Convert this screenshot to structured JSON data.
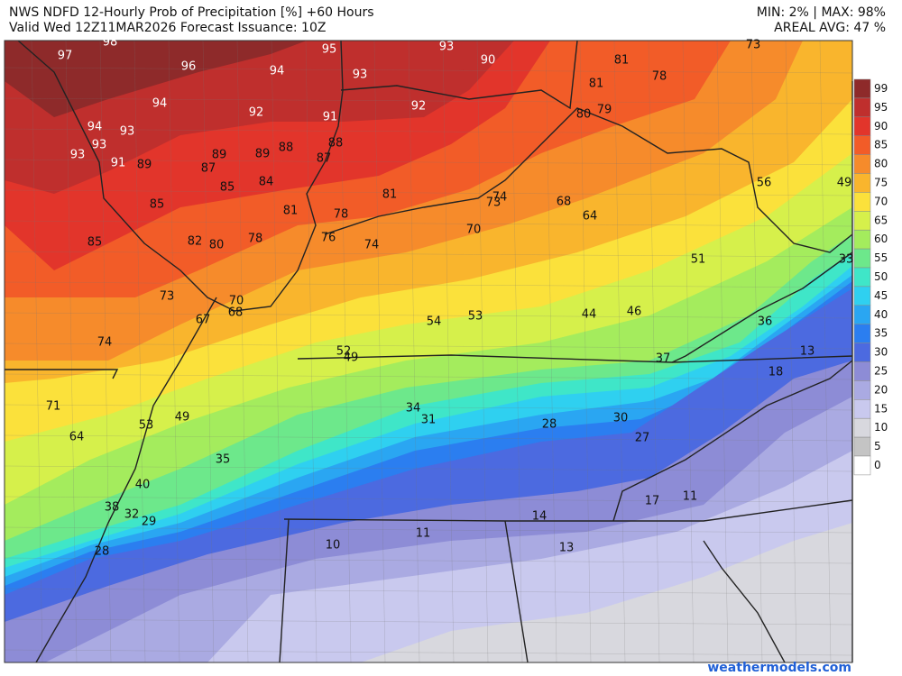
{
  "header": {
    "title": "NWS NDFD 12-Hourly Prob of Precipitation [%] +60 Hours",
    "valid": "Valid Wed 12Z11MAR2026   Forecast Issuance: 10Z",
    "stats": "MIN: 2% | MAX: 98%",
    "areal_avg": "AREAL AVG: 47 %"
  },
  "legend": {
    "levels": [
      99,
      95,
      90,
      85,
      80,
      75,
      70,
      65,
      60,
      55,
      50,
      45,
      40,
      35,
      30,
      25,
      20,
      15,
      10,
      5,
      0
    ],
    "colors": [
      "#8e2a2a",
      "#bf2f2d",
      "#e2352b",
      "#f25c28",
      "#f68b2b",
      "#f9b52d",
      "#fbe13b",
      "#d6f04b",
      "#a4ec5d",
      "#6de88b",
      "#3fe6c8",
      "#2fd0f0",
      "#2aa6f2",
      "#2b7ef0",
      "#4c6ae0",
      "#8d8cd6",
      "#aaaae2",
      "#c9c9ee",
      "#d8d8de",
      "#c4c4c4",
      "#ffffff"
    ]
  },
  "map_labels": [
    97,
    98,
    96,
    94,
    95,
    93,
    93,
    90,
    94,
    92,
    91,
    92,
    94,
    93,
    93,
    93,
    91,
    89,
    89,
    87,
    89,
    88,
    88,
    87,
    85,
    84,
    81,
    85,
    81,
    78,
    85,
    82,
    80,
    78,
    76,
    74,
    81,
    78,
    81,
    80,
    79,
    73,
    74,
    73,
    68,
    64,
    70,
    56,
    49,
    51,
    33,
    73,
    70,
    67,
    68,
    54,
    53,
    44,
    46,
    36,
    74,
    52,
    49,
    37,
    13,
    18,
    71,
    34,
    31,
    28,
    30,
    64,
    53,
    49,
    27,
    35,
    40,
    17,
    11,
    38,
    32,
    29,
    14,
    10,
    11,
    28,
    13
  ],
  "credit": "weathermodels.com"
}
